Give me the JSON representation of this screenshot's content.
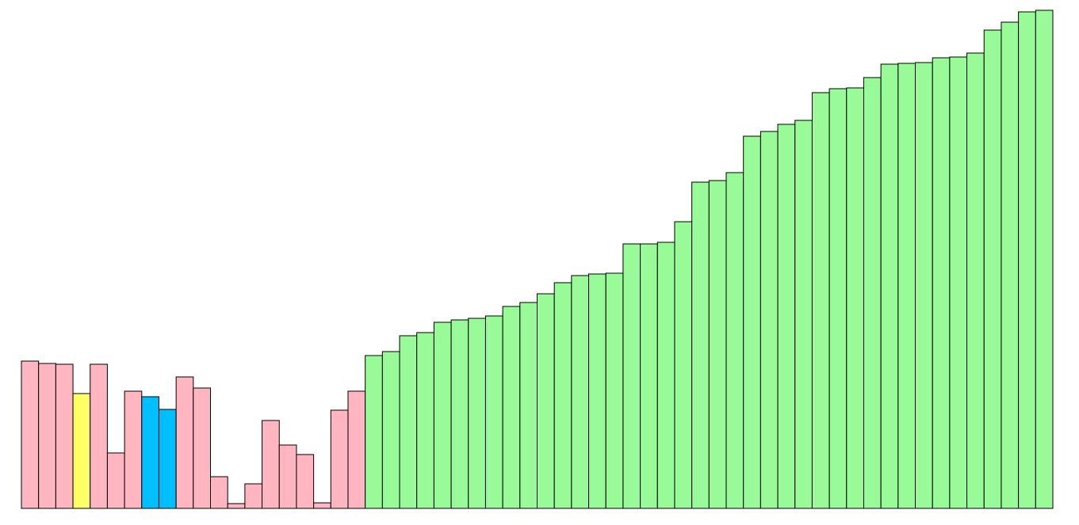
{
  "chart_data": {
    "type": "bar",
    "title": "",
    "xlabel": "",
    "ylabel": "",
    "grid": false,
    "legend": "none",
    "ylim": [
      0,
      630
    ],
    "colors": {
      "default": "#FFB6C1",
      "sorted": "#98FB98",
      "compare": "#FFFF66",
      "active": "#00BFFF",
      "outline": "#000000",
      "background": "#FFFFFF"
    },
    "values": [
      186,
      183,
      182,
      145,
      182,
      70,
      148,
      141,
      125,
      166,
      152,
      40,
      6,
      31,
      111,
      80,
      68,
      7,
      124,
      148,
      193,
      198,
      218,
      222,
      235,
      238,
      240,
      243,
      255,
      260,
      271,
      285,
      294,
      296,
      297,
      334,
      334,
      336,
      362,
      412,
      414,
      424,
      470,
      476,
      485,
      490,
      525,
      530,
      531,
      544,
      561,
      562,
      563,
      569,
      570,
      575,
      604,
      614,
      627,
      629
    ],
    "states": [
      "default",
      "default",
      "default",
      "compare",
      "default",
      "default",
      "default",
      "active",
      "active",
      "default",
      "default",
      "default",
      "default",
      "default",
      "default",
      "default",
      "default",
      "default",
      "default",
      "default",
      "sorted",
      "sorted",
      "sorted",
      "sorted",
      "sorted",
      "sorted",
      "sorted",
      "sorted",
      "sorted",
      "sorted",
      "sorted",
      "sorted",
      "sorted",
      "sorted",
      "sorted",
      "sorted",
      "sorted",
      "sorted",
      "sorted",
      "sorted",
      "sorted",
      "sorted",
      "sorted",
      "sorted",
      "sorted",
      "sorted",
      "sorted",
      "sorted",
      "sorted",
      "sorted",
      "sorted",
      "sorted",
      "sorted",
      "sorted",
      "sorted",
      "sorted",
      "sorted",
      "sorted",
      "sorted",
      "sorted"
    ]
  }
}
